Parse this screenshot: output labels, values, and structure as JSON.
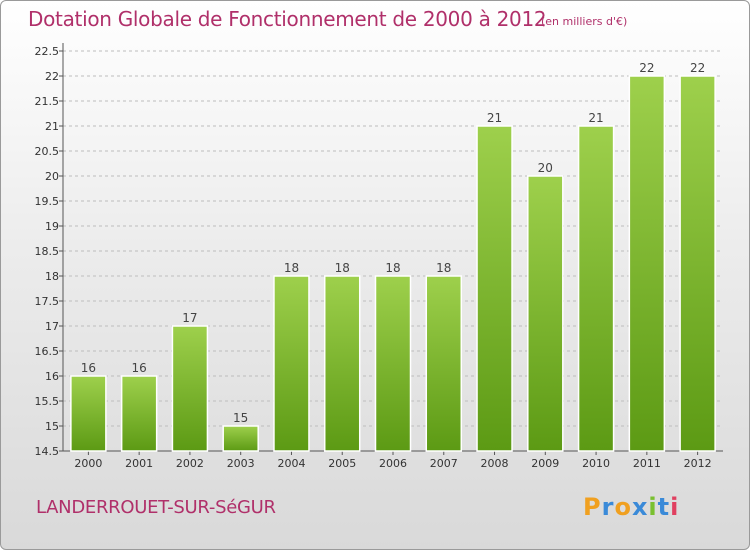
{
  "header": {
    "title": "Dotation Globale de Fonctionnement de 2000 à 2012",
    "unit": "(en milliers d'€)"
  },
  "footer": {
    "commune": "LANDERROUET-SUR-SéGUR",
    "logo": {
      "letters": [
        "P",
        "r",
        "o",
        "x",
        "i",
        "t",
        "i"
      ],
      "colors": [
        "#f0a020",
        "#3a8ad8",
        "#f0a020",
        "#3a8ad8",
        "#7ac030",
        "#3a8ad8",
        "#e04060"
      ]
    }
  },
  "colors": {
    "accent": "#b0306a",
    "bar_light": "#9ed04c",
    "bar_dark": "#5c9a14"
  },
  "chart_data": {
    "type": "bar",
    "categories": [
      "2000",
      "2001",
      "2002",
      "2003",
      "2004",
      "2005",
      "2006",
      "2007",
      "2008",
      "2009",
      "2010",
      "2011",
      "2012"
    ],
    "values": [
      16,
      16,
      17,
      15,
      18,
      18,
      18,
      18,
      21,
      20,
      21,
      22,
      22
    ],
    "data_labels": [
      "16",
      "16",
      "17",
      "15",
      "18",
      "18",
      "18",
      "18",
      "21",
      "20",
      "21",
      "22",
      "22"
    ],
    "y_ticks": [
      "14.5",
      "15",
      "15.5",
      "16",
      "16.5",
      "17",
      "17.5",
      "18",
      "18.5",
      "19",
      "19.5",
      "20",
      "20.5",
      "21",
      "21.5",
      "22",
      "22.5"
    ],
    "ylim": [
      14.5,
      22.5
    ],
    "grid": true,
    "grid_style": "dashed horizontal"
  }
}
